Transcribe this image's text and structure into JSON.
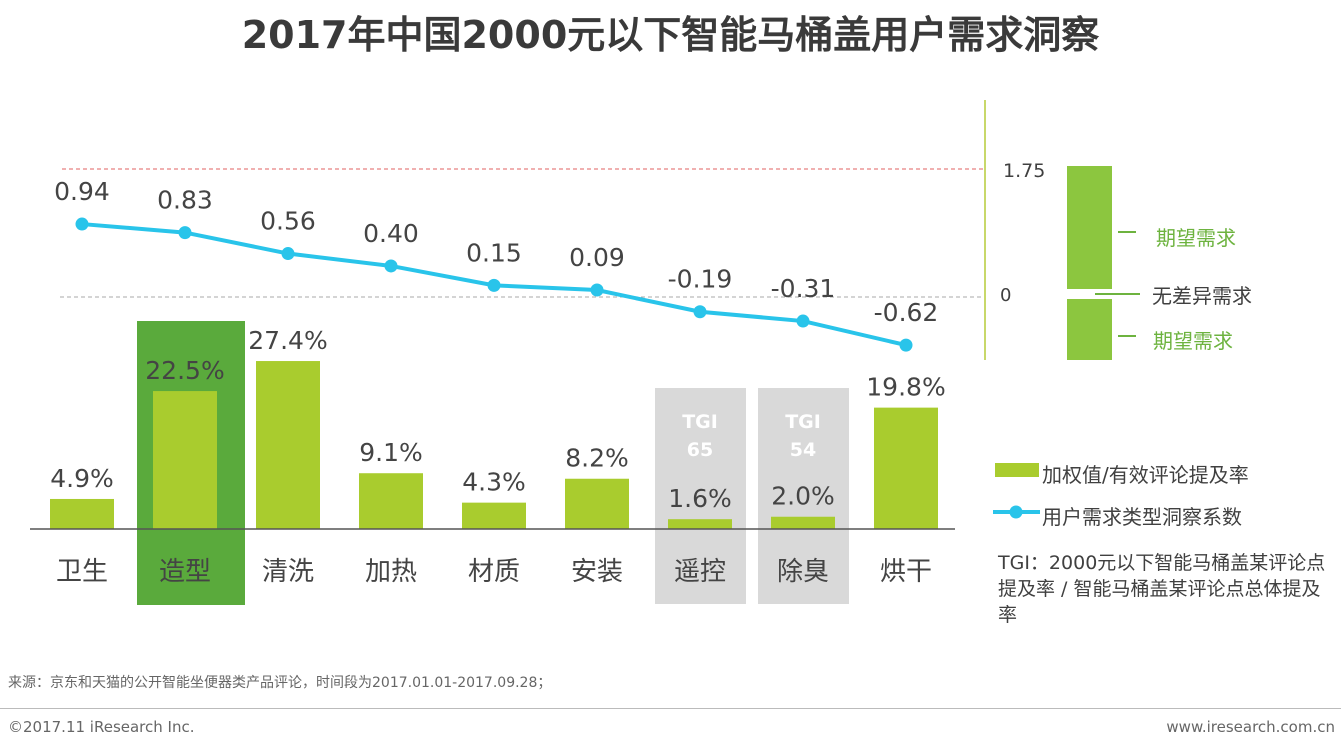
{
  "title": "2017年中国2000元以下智能马桶盖用户需求洞察",
  "chart_data": {
    "type": "bar+line",
    "categories": [
      "卫生",
      "造型",
      "清洗",
      "加热",
      "材质",
      "安装",
      "遥控",
      "除臭",
      "烘干"
    ],
    "series": [
      {
        "name": "加权值/有效评论提及率",
        "type": "bar",
        "values": [
          4.9,
          22.5,
          27.4,
          9.1,
          4.3,
          8.2,
          1.6,
          2.0,
          19.8
        ],
        "labels": [
          "4.9%",
          "22.5%",
          "27.4%",
          "9.1%",
          "4.3%",
          "8.2%",
          "1.6%",
          "2.0%",
          "19.8%"
        ],
        "color": "#a9cc2e"
      },
      {
        "name": "用户需求类型洞察系数",
        "type": "line",
        "values": [
          0.94,
          0.83,
          0.56,
          0.4,
          0.15,
          0.09,
          -0.19,
          -0.31,
          -0.62
        ],
        "labels": [
          "0.94",
          "0.83",
          "0.56",
          "0.40",
          "0.15",
          "0.09",
          "-0.19",
          "-0.31",
          "-0.62"
        ],
        "color": "#29c4ea"
      }
    ],
    "highlight": {
      "category": "造型",
      "color": "#5aaa3c"
    },
    "tgi": [
      {
        "category": "遥控",
        "label": "TGI",
        "value": "65"
      },
      {
        "category": "除臭",
        "label": "TGI",
        "value": "54"
      }
    ],
    "reference_lines": [
      {
        "value": 1.75,
        "color": "#e06060"
      },
      {
        "value": 0,
        "color": "#aaaaaa"
      }
    ],
    "scale": {
      "top": "1.75",
      "zero": "0",
      "upper_label": "期望需求",
      "middle_label": "无差异需求",
      "lower_label": "期望需求"
    }
  },
  "note": "TGI：2000元以下智能马桶盖某评论点提及率 / 智能马桶盖某评论点总体提及率",
  "source": "来源：京东和天猫的公开智能坐便器类产品评论，时间段为2017.01.01-2017.09.28；",
  "copyright": "©2017.11 iResearch Inc.",
  "url": "www.iresearch.com.cn"
}
